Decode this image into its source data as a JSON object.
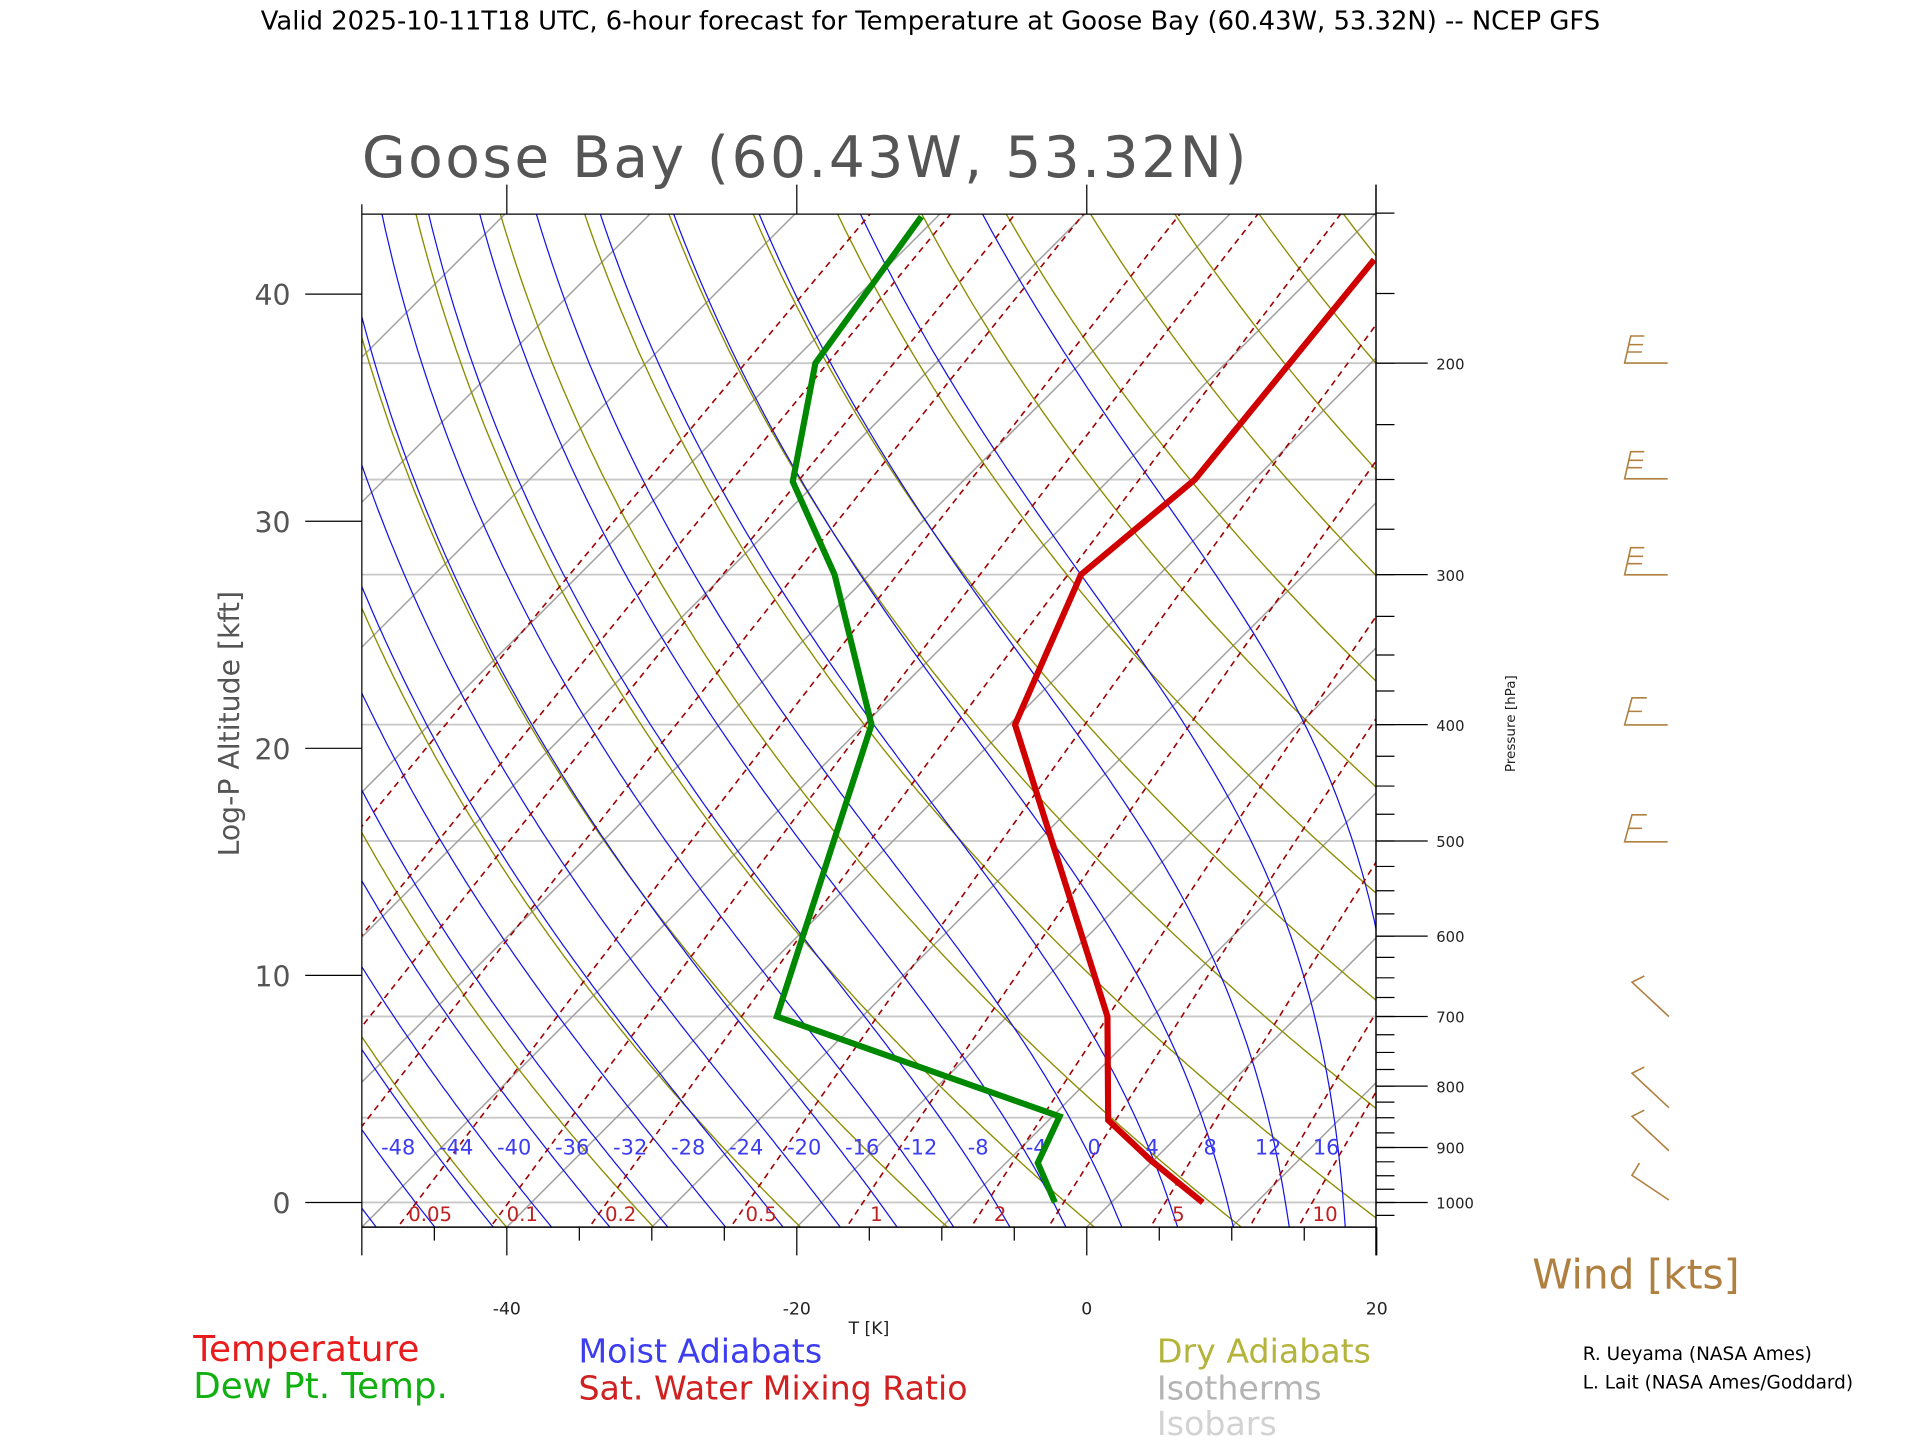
{
  "header": {
    "title": "Valid 2025-10-11T18 UTC, 6-hour forecast for Temperature at Goose Bay (60.43W, 53.32N) -- NCEP GFS"
  },
  "chart_data": {
    "type": "line",
    "subtype": "skew-T log-P diagram",
    "title": "Goose Bay (60.43W, 53.32N)",
    "xlabel": "T [K]",
    "ylabel_left": "Log-P Altitude [kft]",
    "ylabel_right": "Pressure [hPa]",
    "xlim": [
      -50,
      20
    ],
    "pressure_range_hPa": [
      1048,
      150
    ],
    "x_ticks": [
      "-40",
      "-20",
      "0",
      "20"
    ],
    "x_tick_values": [
      -40,
      -20,
      0,
      20
    ],
    "altitude_ticks": [
      "0",
      "10",
      "20",
      "30",
      "40"
    ],
    "altitude_tick_values_kft": [
      0,
      10,
      20,
      30,
      40
    ],
    "pressure_ticks": [
      "1000",
      "900",
      "800",
      "700",
      "600",
      "500",
      "400",
      "300",
      "200"
    ],
    "pressure_tick_values": [
      1000,
      900,
      800,
      700,
      600,
      500,
      400,
      300,
      200
    ],
    "isobar_levels_hPa": [
      1000,
      850,
      700,
      500,
      400,
      300,
      250,
      200,
      150
    ],
    "moist_adiabat_labels": [
      "-48",
      "-44",
      "-40",
      "-36",
      "-32",
      "-28",
      "-24",
      "-20",
      "-16",
      "-12",
      "-8",
      "-4",
      "0",
      "4",
      "8",
      "12",
      "16"
    ],
    "mixing_ratio_labels": [
      "0.05",
      "0.1",
      "0.2",
      "0.5",
      "1",
      "2",
      "5",
      "10"
    ],
    "mixing_ratio_values_gkg": [
      0.05,
      0.1,
      0.2,
      0.5,
      1,
      2,
      5,
      10
    ],
    "series": [
      {
        "name": "Temperature",
        "color": "#d00000",
        "pressure_hPa": [
          1000,
          921,
          854,
          700,
          400,
          300,
          250,
          164
        ],
        "values_C": [
          6.3,
          -0.3,
          -5.9,
          -13.1,
          -39.6,
          -45.4,
          -44.1,
          -46.9
        ]
      },
      {
        "name": "Dew Pt. Temp.",
        "color": "#008800",
        "pressure_hPa": [
          1000,
          927,
          848,
          700,
          400,
          300,
          251,
          200,
          151
        ],
        "values_C": [
          -3.9,
          -7.8,
          -9.5,
          -35.9,
          -49.5,
          -62.4,
          -71.7,
          -78.3,
          -81.1
        ]
      }
    ],
    "wind_label": "Wind [kts]",
    "wind_barb_levels_hPa": [
      200,
      250,
      300,
      400,
      500,
      700,
      800,
      850,
      900,
      1000
    ],
    "legend": [
      {
        "label": "Temperature",
        "color": "#e81c1c"
      },
      {
        "label": "Dew Pt. Temp.",
        "color": "#10b010"
      },
      {
        "label": "Moist Adiabats",
        "color": "#3c3cf0"
      },
      {
        "label": "Sat. Water Mixing Ratio",
        "color": "#d02020"
      },
      {
        "label": "Dry Adiabats",
        "color": "#b4b43c"
      },
      {
        "label": "Isotherms",
        "color": "#b4b4b4"
      },
      {
        "label": "Isobars",
        "color": "#d2d2d2"
      }
    ],
    "colors": {
      "isotherm": "#a0a0a0",
      "isobar": "#c8c8c8",
      "dry_adiabat": "#8c8c00",
      "moist_adiabat": "#1414e6",
      "mixing_ratio": "#a00000",
      "wind": "#b08040"
    }
  },
  "credits": [
    "R. Ueyama (NASA Ames)",
    "L. Lait (NASA Ames/Goddard)"
  ]
}
